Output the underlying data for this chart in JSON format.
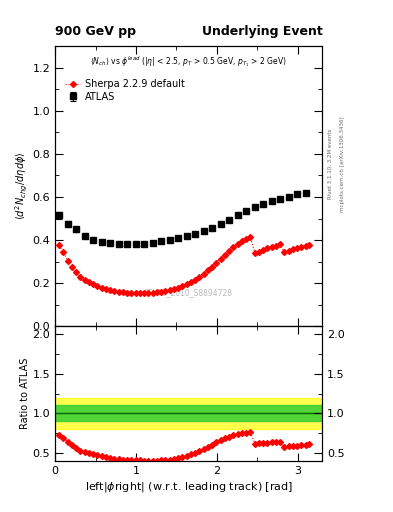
{
  "title_left": "900 GeV pp",
  "title_right": "Underlying Event",
  "right_label_top": "Rivet 3.1.10, 3.2M events",
  "right_label_bot": "mcplots.cern.ch [arXiv:1306.3436]",
  "watermark": "ATLAS_2010_S8894728",
  "atlas_x": [
    0.05,
    0.16,
    0.26,
    0.37,
    0.47,
    0.58,
    0.68,
    0.79,
    0.89,
    1.0,
    1.1,
    1.21,
    1.31,
    1.42,
    1.52,
    1.63,
    1.73,
    1.84,
    1.94,
    2.05,
    2.15,
    2.26,
    2.36,
    2.47,
    2.57,
    2.68,
    2.78,
    2.89,
    2.99,
    3.1
  ],
  "atlas_y": [
    0.515,
    0.475,
    0.45,
    0.42,
    0.4,
    0.39,
    0.385,
    0.382,
    0.38,
    0.38,
    0.382,
    0.388,
    0.395,
    0.402,
    0.41,
    0.418,
    0.428,
    0.442,
    0.458,
    0.475,
    0.495,
    0.515,
    0.535,
    0.552,
    0.568,
    0.582,
    0.592,
    0.602,
    0.612,
    0.618
  ],
  "atlas_yerr": [
    0.015,
    0.012,
    0.012,
    0.01,
    0.01,
    0.01,
    0.008,
    0.008,
    0.008,
    0.008,
    0.008,
    0.008,
    0.008,
    0.008,
    0.008,
    0.008,
    0.008,
    0.008,
    0.008,
    0.008,
    0.008,
    0.008,
    0.008,
    0.008,
    0.008,
    0.008,
    0.008,
    0.008,
    0.008,
    0.008
  ],
  "sherpa_x": [
    0.05,
    0.1,
    0.16,
    0.21,
    0.26,
    0.31,
    0.37,
    0.42,
    0.47,
    0.52,
    0.58,
    0.63,
    0.68,
    0.73,
    0.79,
    0.84,
    0.89,
    0.94,
    1.0,
    1.05,
    1.1,
    1.15,
    1.21,
    1.26,
    1.31,
    1.36,
    1.42,
    1.47,
    1.52,
    1.57,
    1.63,
    1.68,
    1.73,
    1.78,
    1.84,
    1.89,
    1.94,
    1.99,
    2.05,
    2.1,
    2.15,
    2.2,
    2.26,
    2.31,
    2.36,
    2.41,
    2.47,
    2.52,
    2.57,
    2.62,
    2.68,
    2.73,
    2.78,
    2.83,
    2.89,
    2.94,
    2.99,
    3.04,
    3.1,
    3.14
  ],
  "sherpa_y": [
    0.375,
    0.345,
    0.305,
    0.275,
    0.25,
    0.23,
    0.215,
    0.205,
    0.195,
    0.185,
    0.178,
    0.172,
    0.167,
    0.163,
    0.16,
    0.158,
    0.156,
    0.155,
    0.154,
    0.154,
    0.154,
    0.155,
    0.156,
    0.158,
    0.16,
    0.163,
    0.167,
    0.172,
    0.178,
    0.185,
    0.194,
    0.204,
    0.216,
    0.229,
    0.244,
    0.26,
    0.277,
    0.295,
    0.314,
    0.332,
    0.35,
    0.367,
    0.382,
    0.395,
    0.405,
    0.413,
    0.34,
    0.347,
    0.354,
    0.361,
    0.368,
    0.374,
    0.38,
    0.345,
    0.351,
    0.357,
    0.363,
    0.369,
    0.373,
    0.377
  ],
  "ylim_main": [
    0.0,
    1.3
  ],
  "ylim_ratio": [
    0.4,
    2.1
  ],
  "xlim": [
    0.0,
    3.3
  ],
  "green_band": [
    0.9,
    1.1
  ],
  "yellow_band": [
    0.8,
    1.2
  ],
  "main_yticks": [
    0.0,
    0.2,
    0.4,
    0.6,
    0.8,
    1.0,
    1.2
  ],
  "ratio_yticks": [
    0.5,
    1.0,
    1.5,
    2.0
  ],
  "xticks": [
    0,
    1,
    2,
    3
  ],
  "atlas_color": "black",
  "sherpa_color": "red"
}
